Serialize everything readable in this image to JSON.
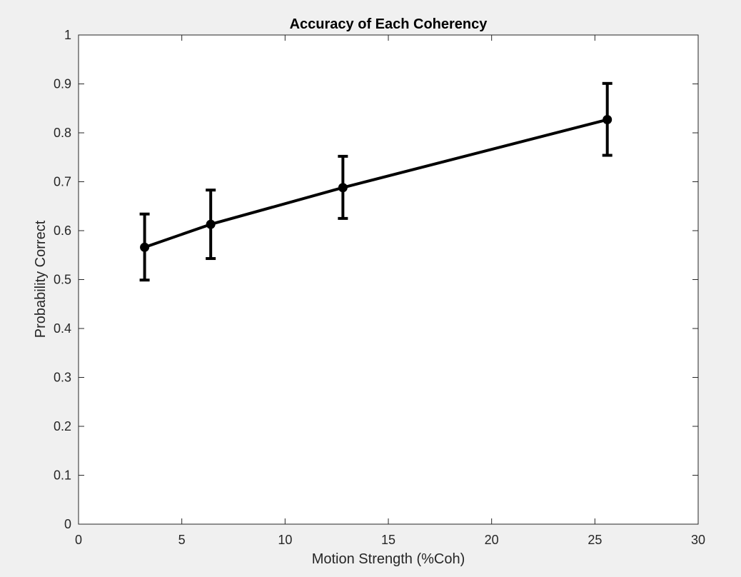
{
  "colors": {
    "figure_background": "#f0f0f0",
    "axes_background": "#ffffff",
    "axis": "#262626",
    "series": "#000000"
  },
  "chart_data": {
    "type": "line",
    "title": "Accuracy of Each Coherency",
    "xlabel": "Motion Strength (%Coh)",
    "ylabel": "Probability Correct",
    "xlim": [
      0,
      30
    ],
    "ylim": [
      0,
      1
    ],
    "xticks": [
      0,
      5,
      10,
      15,
      20,
      25,
      30
    ],
    "xtick_labels": [
      "0",
      "5",
      "10",
      "15",
      "20",
      "25",
      "30"
    ],
    "yticks": [
      0,
      0.1,
      0.2,
      0.3,
      0.4,
      0.5,
      0.6,
      0.7,
      0.8,
      0.9,
      1
    ],
    "ytick_labels": [
      "0",
      "0.1",
      "0.2",
      "0.3",
      "0.4",
      "0.5",
      "0.6",
      "0.7",
      "0.8",
      "0.9",
      "1"
    ],
    "grid": false,
    "box": true,
    "series": [
      {
        "x": [
          3.2,
          6.4,
          12.8,
          25.6
        ],
        "y": [
          0.566,
          0.613,
          0.688,
          0.827
        ],
        "error_lower": [
          0.499,
          0.543,
          0.625,
          0.754
        ],
        "error_upper": [
          0.634,
          0.683,
          0.752,
          0.901
        ],
        "marker": "circle",
        "error_bars": true
      }
    ]
  }
}
